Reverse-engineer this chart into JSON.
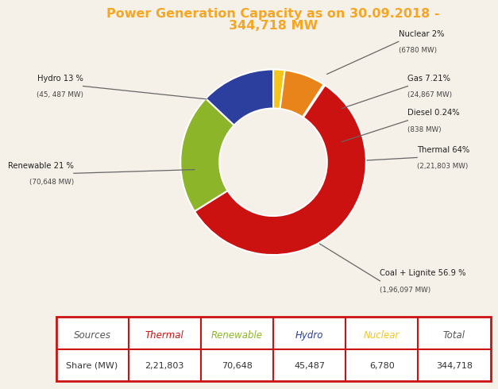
{
  "title_line1": "Power Generation Capacity as on 30.09.2018 -",
  "title_line2": "344,718 MW",
  "title_color": "#F5A623",
  "pie_labels": [
    "Nuclear",
    "Gas",
    "Diesel",
    "Coal + Lignite",
    "Renewable",
    "Hydro"
  ],
  "pie_values": [
    2.0,
    7.21,
    0.24,
    56.9,
    21.0,
    13.0
  ],
  "pie_colors": [
    "#F5C518",
    "#E8841A",
    "#4A90D9",
    "#CC1111",
    "#8DB52A",
    "#2C3E9E"
  ],
  "annot_line1": {
    "Nuclear": "Nuclear 2%",
    "Gas": "Gas 7.21%",
    "Diesel": "Diesel 0.24%",
    "Coal + Lignite": "Coal + Lignite 56.9 %",
    "Renewable": "Renewable 21 %",
    "Hydro": "Hydro 13 %",
    "Thermal": "Thermal 64%"
  },
  "annot_line2": {
    "Nuclear": "(6780 MW)",
    "Gas": "(24,867 MW)",
    "Diesel": "(838 MW)",
    "Coal + Lignite": "(1,96,097 MW)",
    "Renewable": "(70,648 MW)",
    "Hydro": "(45, 487 MW)",
    "Thermal": "(2,21,803 MW)"
  },
  "table_headers": [
    "Sources",
    "Thermal",
    "Renewable",
    "Hydro",
    "Nuclear",
    "Total"
  ],
  "table_values": [
    "Share (MW)",
    "2,21,803",
    "70,648",
    "45,487",
    "6,780",
    "344,718"
  ],
  "table_header_colors": [
    "#555555",
    "#CC1111",
    "#8DB52A",
    "#2C3E9E",
    "#F5C518",
    "#555555"
  ],
  "table_border_color": "#CC1111",
  "bg_color": "#F5F0E8"
}
